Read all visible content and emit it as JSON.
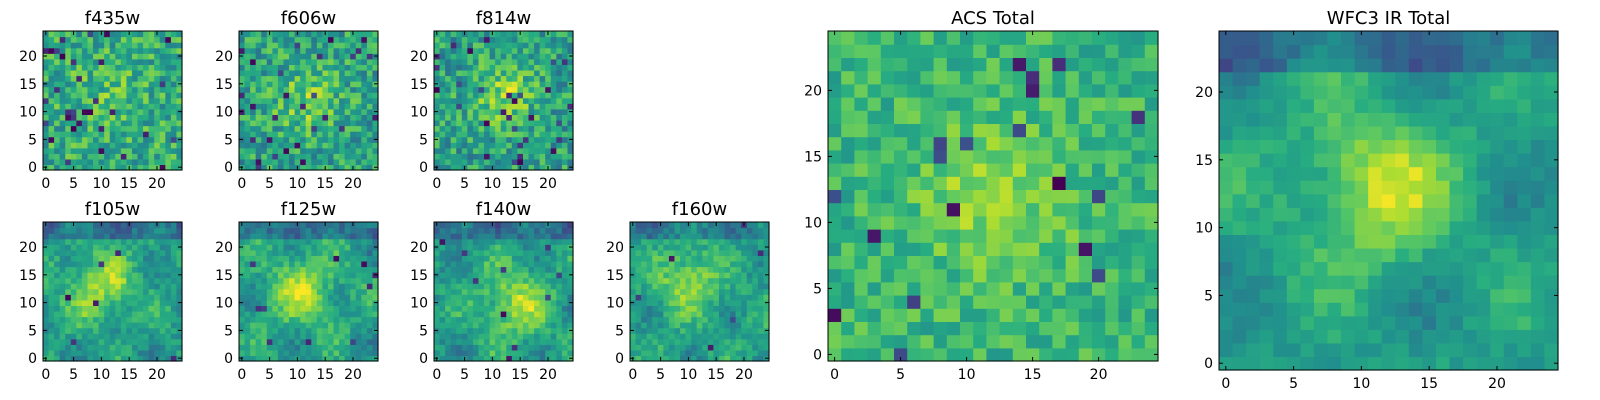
{
  "chart_data": {
    "type": "heatmap",
    "colormap": "viridis",
    "colors": [
      "#440154",
      "#3b528b",
      "#21918c",
      "#5ec962",
      "#fde725"
    ],
    "panels": [
      {
        "id": "f435w",
        "title": "f435w",
        "shape": [
          25,
          25
        ],
        "xlim": [
          0,
          24
        ],
        "ylim": [
          0,
          24
        ],
        "xticks": [
          0,
          5,
          10,
          15,
          20
        ],
        "xtick_labels": [
          "0",
          "5",
          "10",
          "15",
          "20"
        ],
        "yticks": [
          0,
          5,
          10,
          15,
          20
        ],
        "ytick_labels": [
          "0",
          "5",
          "10",
          "15",
          "20"
        ],
        "mean": 0.62,
        "noise": 0.2,
        "peak": {
          "x": 11,
          "y": 13,
          "amp": 0.08,
          "sigma": 5
        },
        "lowfreq": 0.0,
        "dark_fraction": 0.05,
        "seed": 11
      },
      {
        "id": "f606w",
        "title": "f606w",
        "shape": [
          25,
          25
        ],
        "xlim": [
          0,
          24
        ],
        "ylim": [
          0,
          24
        ],
        "xticks": [
          0,
          5,
          10,
          15,
          20
        ],
        "xtick_labels": [
          "0",
          "5",
          "10",
          "15",
          "20"
        ],
        "yticks": [
          0,
          5,
          10,
          15,
          20
        ],
        "ytick_labels": [
          "0",
          "5",
          "10",
          "15",
          "20"
        ],
        "mean": 0.58,
        "noise": 0.2,
        "peak": {
          "x": 12,
          "y": 12,
          "amp": 0.22,
          "sigma": 4
        },
        "lowfreq": 0.0,
        "dark_fraction": 0.04,
        "seed": 23
      },
      {
        "id": "f814w",
        "title": "f814w",
        "shape": [
          25,
          25
        ],
        "xlim": [
          0,
          24
        ],
        "ylim": [
          0,
          24
        ],
        "xticks": [
          0,
          5,
          10,
          15,
          20
        ],
        "xtick_labels": [
          "0",
          "5",
          "10",
          "15",
          "20"
        ],
        "yticks": [
          0,
          5,
          10,
          15,
          20
        ],
        "ytick_labels": [
          "0",
          "5",
          "10",
          "15",
          "20"
        ],
        "mean": 0.57,
        "noise": 0.2,
        "peak": {
          "x": 12,
          "y": 13,
          "amp": 0.26,
          "sigma": 4
        },
        "lowfreq": 0.0,
        "dark_fraction": 0.04,
        "seed": 37
      },
      {
        "id": "f105w",
        "title": "f105w",
        "shape": [
          25,
          25
        ],
        "xlim": [
          0,
          24
        ],
        "ylim": [
          0,
          24
        ],
        "xticks": [
          0,
          5,
          10,
          15,
          20
        ],
        "xtick_labels": [
          "0",
          "5",
          "10",
          "15",
          "20"
        ],
        "yticks": [
          0,
          5,
          10,
          15,
          20
        ],
        "ytick_labels": [
          "0",
          "5",
          "10",
          "15",
          "20"
        ],
        "mean": 0.55,
        "noise": 0.1,
        "peak": {
          "x": 10,
          "y": 13,
          "amp": 0.3,
          "sigma": 4.5
        },
        "lowfreq": 0.12,
        "dark_fraction": 0.01,
        "seed": 41
      },
      {
        "id": "f125w",
        "title": "f125w",
        "shape": [
          25,
          25
        ],
        "xlim": [
          0,
          24
        ],
        "ylim": [
          0,
          24
        ],
        "xticks": [
          0,
          5,
          10,
          15,
          20
        ],
        "xtick_labels": [
          "0",
          "5",
          "10",
          "15",
          "20"
        ],
        "yticks": [
          0,
          5,
          10,
          15,
          20
        ],
        "ytick_labels": [
          "0",
          "5",
          "10",
          "15",
          "20"
        ],
        "mean": 0.56,
        "noise": 0.1,
        "peak": {
          "x": 11,
          "y": 12,
          "amp": 0.3,
          "sigma": 4.5
        },
        "lowfreq": 0.12,
        "dark_fraction": 0.01,
        "seed": 53
      },
      {
        "id": "f140w",
        "title": "f140w",
        "shape": [
          25,
          25
        ],
        "xlim": [
          0,
          24
        ],
        "ylim": [
          0,
          24
        ],
        "xticks": [
          0,
          5,
          10,
          15,
          20
        ],
        "xtick_labels": [
          "0",
          "5",
          "10",
          "15",
          "20"
        ],
        "yticks": [
          0,
          5,
          10,
          15,
          20
        ],
        "ytick_labels": [
          "0",
          "5",
          "10",
          "15",
          "20"
        ],
        "mean": 0.55,
        "noise": 0.1,
        "peak": {
          "x": 14,
          "y": 10,
          "amp": 0.32,
          "sigma": 4.5
        },
        "lowfreq": 0.12,
        "dark_fraction": 0.01,
        "seed": 67
      },
      {
        "id": "f160w",
        "title": "f160w",
        "shape": [
          25,
          25
        ],
        "xlim": [
          0,
          24
        ],
        "ylim": [
          0,
          24
        ],
        "xticks": [
          0,
          5,
          10,
          15,
          20
        ],
        "xtick_labels": [
          "0",
          "5",
          "10",
          "15",
          "20"
        ],
        "yticks": [
          0,
          5,
          10,
          15,
          20
        ],
        "ytick_labels": [
          "0",
          "5",
          "10",
          "15",
          "20"
        ],
        "mean": 0.58,
        "noise": 0.1,
        "peak": {
          "x": 10,
          "y": 14,
          "amp": 0.3,
          "sigma": 3.5
        },
        "lowfreq": 0.1,
        "dark_fraction": 0.01,
        "seed": 79
      },
      {
        "id": "acs-total",
        "title": "ACS Total",
        "shape": [
          25,
          25
        ],
        "xlim": [
          0,
          24
        ],
        "ylim": [
          0,
          24
        ],
        "xticks": [
          0,
          5,
          10,
          15,
          20
        ],
        "xtick_labels": [
          "0",
          "5",
          "10",
          "15",
          "20"
        ],
        "yticks": [
          0,
          5,
          10,
          15,
          20
        ],
        "ytick_labels": [
          "0",
          "5",
          "10",
          "15",
          "20"
        ],
        "mean": 0.66,
        "noise": 0.13,
        "peak": {
          "x": 12,
          "y": 12,
          "amp": 0.2,
          "sigma": 4
        },
        "lowfreq": 0.0,
        "dark_fraction": 0.03,
        "seed": 97
      },
      {
        "id": "wfc3-ir-total",
        "title": "WFC3 IR Total",
        "shape": [
          25,
          25
        ],
        "xlim": [
          0,
          24
        ],
        "ylim": [
          0,
          24
        ],
        "xticks": [
          0,
          5,
          10,
          15,
          20
        ],
        "xtick_labels": [
          "0",
          "5",
          "10",
          "15",
          "20"
        ],
        "yticks": [
          0,
          5,
          10,
          15,
          20
        ],
        "ytick_labels": [
          "0",
          "5",
          "10",
          "15",
          "20"
        ],
        "mean": 0.55,
        "noise": 0.06,
        "peak": {
          "x": 11,
          "y": 13,
          "amp": 0.35,
          "sigma": 4
        },
        "lowfreq": 0.12,
        "dark_fraction": 0.0,
        "seed": 113
      }
    ]
  }
}
